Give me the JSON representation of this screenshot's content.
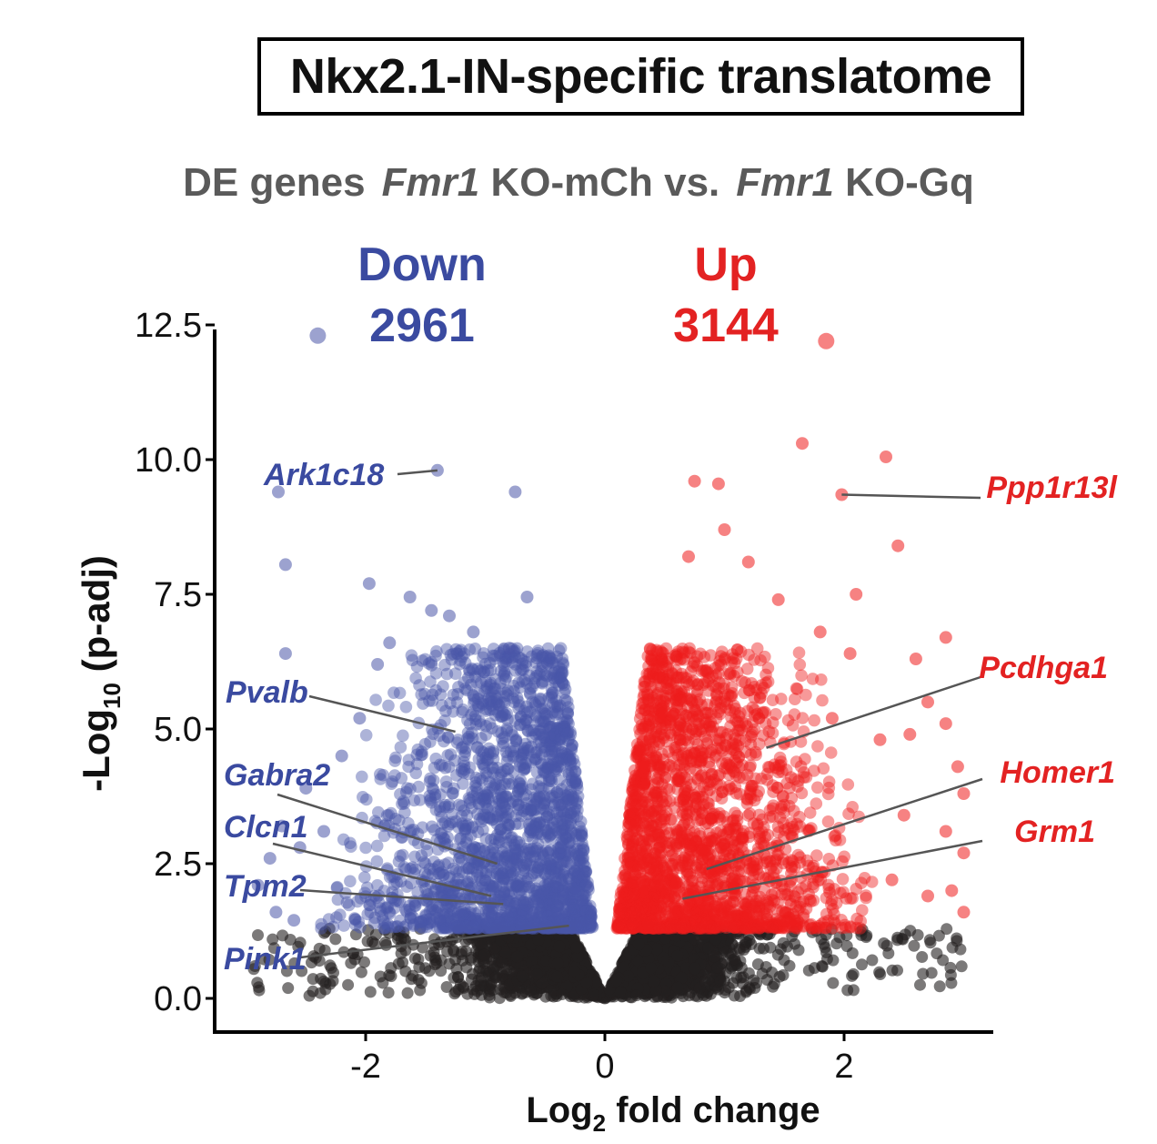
{
  "title": "Nkx2.1-IN-specific translatome",
  "subtitle": {
    "prefix": "DE genes",
    "gene_a": "Fmr1",
    "group_a": "KO-mCh vs.",
    "gene_b": "Fmr1",
    "group_b": "KO-Gq"
  },
  "colors": {
    "down": "#4a56a8",
    "up": "#ee1c1c",
    "ns": "#231f20",
    "down_label": "#3a4aa0",
    "up_label": "#e32222"
  },
  "chart_data": {
    "type": "scatter",
    "xlabel": "Log2 fold change",
    "xlabel_main": "Log",
    "xlabel_sub": "2",
    "xlabel_rest": " fold change",
    "ylabel_main": "-Log",
    "ylabel_sub": "10",
    "ylabel_rest": " (p-adj)",
    "xlim": [
      -3.2,
      3.3
    ],
    "ylim": [
      -0.6,
      12.5
    ],
    "x_ticks": [
      -2,
      0,
      2
    ],
    "x_tick_labels": [
      "-2",
      "0",
      "2"
    ],
    "y_ticks": [
      0,
      2.5,
      5,
      7.5,
      10,
      12.5
    ],
    "y_tick_labels": [
      "0.0",
      "2.5",
      "5.0",
      "7.5",
      "10.0",
      "12.5"
    ],
    "significance_threshold_y": 1.3,
    "groups": {
      "down": {
        "label": "Down",
        "count": "2961"
      },
      "up": {
        "label": "Up",
        "count": "3144"
      }
    },
    "series": [
      {
        "group": "down",
        "points": [
          [
            -2.4,
            12.3
          ],
          [
            -1.4,
            9.8
          ],
          [
            -2.73,
            9.4
          ],
          [
            -0.75,
            9.4
          ],
          [
            -2.67,
            8.05
          ],
          [
            -1.97,
            7.7
          ],
          [
            -1.63,
            7.45
          ],
          [
            -0.65,
            7.45
          ],
          [
            -2.67,
            6.4
          ],
          [
            -1.45,
            7.2
          ],
          [
            -1.3,
            7.1
          ],
          [
            -1.1,
            6.8
          ],
          [
            -2.05,
            5.2
          ],
          [
            -2.2,
            4.5
          ],
          [
            -2.5,
            3.9
          ],
          [
            -2.7,
            3.2
          ],
          [
            -2.8,
            2.6
          ],
          [
            -2.9,
            2.1
          ],
          [
            -2.55,
            2.8
          ],
          [
            -2.35,
            3.1
          ],
          [
            -2.75,
            1.6
          ],
          [
            -2.6,
            1.45
          ],
          [
            -1.9,
            6.2
          ],
          [
            -1.8,
            6.6
          ],
          [
            -0.8,
            6.5
          ]
        ]
      },
      {
        "group": "up",
        "points": [
          [
            1.85,
            12.2
          ],
          [
            1.65,
            10.3
          ],
          [
            2.35,
            10.05
          ],
          [
            1.98,
            9.35
          ],
          [
            0.75,
            9.6
          ],
          [
            0.95,
            9.55
          ],
          [
            1.0,
            8.7
          ],
          [
            2.45,
            8.4
          ],
          [
            0.7,
            8.2
          ],
          [
            1.2,
            8.1
          ],
          [
            1.45,
            7.4
          ],
          [
            2.1,
            7.5
          ],
          [
            1.8,
            6.8
          ],
          [
            2.05,
            6.4
          ],
          [
            2.6,
            6.3
          ],
          [
            2.85,
            6.7
          ],
          [
            2.7,
            5.5
          ],
          [
            2.85,
            5.1
          ],
          [
            2.55,
            4.9
          ],
          [
            2.95,
            4.3
          ],
          [
            3.0,
            3.8
          ],
          [
            2.5,
            3.4
          ],
          [
            2.85,
            3.1
          ],
          [
            3.0,
            2.7
          ],
          [
            2.9,
            2.0
          ],
          [
            2.7,
            1.9
          ],
          [
            3.0,
            1.6
          ],
          [
            2.4,
            2.2
          ],
          [
            2.3,
            4.8
          ],
          [
            1.9,
            5.2
          ]
        ]
      }
    ],
    "annotations": [
      {
        "gene": "Ark1c18",
        "group": "down",
        "point": [
          -1.4,
          9.8
        ]
      },
      {
        "gene": "Pvalb",
        "group": "down",
        "point": [
          -1.25,
          4.95
        ]
      },
      {
        "gene": "Gabra2",
        "group": "down",
        "point": [
          -0.9,
          2.5
        ]
      },
      {
        "gene": "Clcn1",
        "group": "down",
        "point": [
          -0.95,
          1.9
        ]
      },
      {
        "gene": "Tpm2",
        "group": "down",
        "point": [
          -0.85,
          1.75
        ]
      },
      {
        "gene": "Pink1",
        "group": "down",
        "point": [
          -0.3,
          1.35
        ]
      },
      {
        "gene": "Ppp1r13l",
        "group": "up",
        "point": [
          1.98,
          9.35
        ]
      },
      {
        "gene": "Pcdhga1",
        "group": "up",
        "point": [
          1.35,
          4.65
        ]
      },
      {
        "gene": "Homer1",
        "group": "up",
        "point": [
          0.85,
          2.4
        ]
      },
      {
        "gene": "Grm1",
        "group": "up",
        "point": [
          0.65,
          1.85
        ]
      }
    ]
  }
}
